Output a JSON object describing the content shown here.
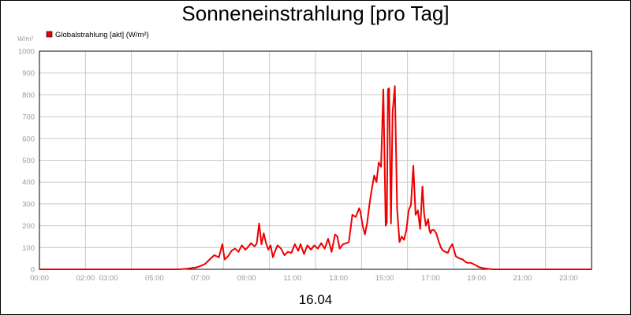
{
  "title": "Sonneneinstrahlung [pro Tag]",
  "colors": {
    "series": "#ee0000",
    "grid": "#c8c8c8",
    "axis": "#000000",
    "tick_text": "#9a9a9a"
  },
  "chart_data": {
    "type": "line",
    "title": "Sonneneinstrahlung [pro Tag]",
    "ylabel": "W/m²",
    "xlabel": "16.04",
    "ylim": [
      0,
      1000
    ],
    "xlim": [
      0,
      24
    ],
    "grid": true,
    "legend": "top-left",
    "y_ticks": [
      0,
      100,
      200,
      300,
      400,
      500,
      600,
      700,
      800,
      900,
      1000
    ],
    "y_tick_labels": [
      "0",
      "100",
      "200",
      "300",
      "400",
      "500",
      "600",
      "700",
      "800",
      "900",
      "1000"
    ],
    "x_ticks": [
      0,
      2,
      3,
      5,
      7,
      9,
      11,
      13,
      15,
      17,
      19,
      21,
      23
    ],
    "x_tick_labels": [
      "00:00",
      "02:00",
      "03:00",
      "05:00",
      "07:00",
      "09:00",
      "11:00",
      "13:00",
      "15:00",
      "17:00",
      "19:00",
      "21:00",
      "23:00"
    ],
    "x_grid": [
      0,
      2,
      4,
      6,
      8,
      10,
      12,
      14,
      16,
      18,
      20,
      22,
      24
    ],
    "series": [
      {
        "name": "Globalstrahlung [akt] (W/m²)",
        "color": "#ee0000",
        "x": [
          0,
          6.1,
          6.4,
          6.8,
          7.0,
          7.2,
          7.4,
          7.6,
          7.8,
          7.95,
          8.05,
          8.2,
          8.35,
          8.5,
          8.65,
          8.8,
          8.95,
          9.05,
          9.2,
          9.35,
          9.45,
          9.55,
          9.65,
          9.75,
          9.85,
          9.95,
          10.05,
          10.15,
          10.25,
          10.35,
          10.5,
          10.65,
          10.8,
          10.95,
          11.1,
          11.25,
          11.35,
          11.5,
          11.65,
          11.8,
          11.95,
          12.1,
          12.25,
          12.4,
          12.55,
          12.7,
          12.85,
          12.95,
          13.05,
          13.2,
          13.35,
          13.45,
          13.6,
          13.75,
          13.9,
          13.95,
          14.05,
          14.15,
          14.25,
          14.35,
          14.45,
          14.55,
          14.65,
          14.75,
          14.85,
          14.95,
          15.05,
          15.1,
          15.15,
          15.2,
          15.28,
          15.35,
          15.45,
          15.55,
          15.65,
          15.75,
          15.85,
          15.95,
          16.05,
          16.15,
          16.25,
          16.35,
          16.45,
          16.55,
          16.65,
          16.72,
          16.8,
          16.9,
          16.95,
          17.0,
          17.05,
          17.15,
          17.25,
          17.35,
          17.45,
          17.55,
          17.65,
          17.75,
          17.85,
          17.95,
          18.1,
          18.25,
          18.4,
          18.5,
          18.6,
          18.75,
          18.85,
          18.95,
          19.1,
          19.3,
          19.5,
          19.7,
          19.85,
          20.0,
          20.1,
          20.3,
          20.6,
          21.0,
          24.0
        ],
        "values": [
          0,
          0,
          3,
          8,
          15,
          25,
          45,
          65,
          55,
          115,
          45,
          60,
          85,
          95,
          80,
          110,
          90,
          100,
          120,
          105,
          120,
          210,
          115,
          165,
          120,
          90,
          110,
          55,
          85,
          110,
          95,
          65,
          80,
          75,
          115,
          85,
          115,
          70,
          110,
          90,
          110,
          95,
          120,
          95,
          140,
          80,
          160,
          150,
          95,
          115,
          120,
          125,
          250,
          240,
          280,
          265,
          200,
          160,
          215,
          300,
          370,
          430,
          400,
          490,
          470,
          825,
          200,
          215,
          825,
          830,
          210,
          720,
          840,
          275,
          125,
          150,
          135,
          180,
          270,
          295,
          475,
          250,
          270,
          185,
          380,
          255,
          200,
          230,
          180,
          165,
          180,
          180,
          165,
          130,
          100,
          85,
          80,
          75,
          100,
          115,
          60,
          50,
          45,
          35,
          30,
          30,
          25,
          20,
          10,
          5,
          2,
          0,
          0,
          0,
          0,
          0,
          0,
          0,
          0
        ]
      }
    ]
  }
}
